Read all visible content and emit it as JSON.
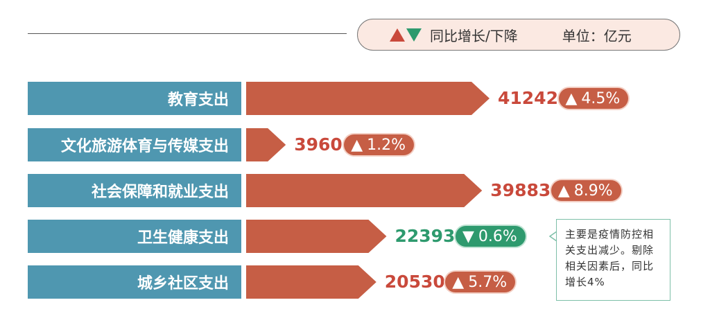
{
  "legend": {
    "text": "同比增长/下降",
    "unit": "单位：亿元",
    "up_color": "#c9493b",
    "down_color": "#2e9a6e"
  },
  "chart_data": {
    "type": "bar",
    "orientation": "horizontal",
    "unit": "亿元",
    "categories": [
      "教育支出",
      "文化旅游体育与传媒支出",
      "社会保障和就业支出",
      "卫生健康支出",
      "城乡社区支出"
    ],
    "values": [
      41242,
      3960,
      39883,
      22393,
      20530
    ],
    "changes": [
      {
        "direction": "up",
        "label": "4.5%",
        "value": 4.5
      },
      {
        "direction": "up",
        "label": "1.2%",
        "value": 1.2
      },
      {
        "direction": "up",
        "label": "8.9%",
        "value": 8.9
      },
      {
        "direction": "down",
        "label": "0.6%",
        "value": -0.6
      },
      {
        "direction": "up",
        "label": "5.7%",
        "value": 5.7
      }
    ],
    "bar_color": "#c65e45",
    "label_color": "#4f97b0"
  },
  "note": "主要是疫情防控相关支出减少。剔除相关因素后，同比增长4%"
}
